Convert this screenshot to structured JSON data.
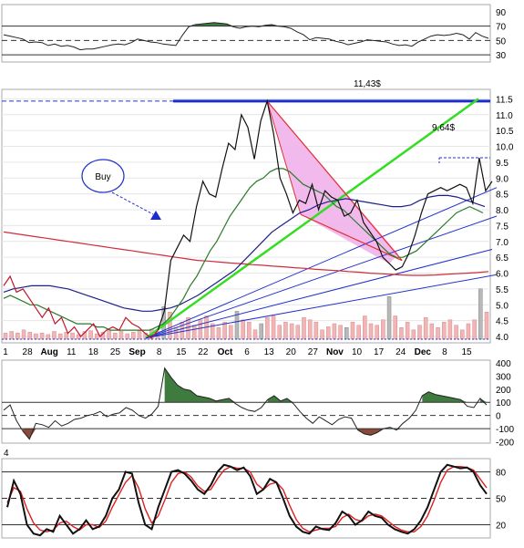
{
  "chart_data": {
    "type": "line",
    "panels": [
      {
        "id": "rsi",
        "ylim": [
          20,
          100
        ],
        "yticks": [
          "90",
          "70",
          "50",
          "30"
        ],
        "levels": [
          70,
          50,
          30
        ],
        "series": [
          {
            "values": [
              58,
              56,
              54,
              52,
              47,
              48,
              47,
              43,
              45,
              42,
              43,
              41,
              37,
              38,
              38,
              40,
              42,
              44,
              45,
              44,
              47,
              52,
              50,
              48,
              47,
              45,
              44,
              43,
              57,
              69,
              72,
              73,
              74,
              75,
              74,
              73,
              69,
              67,
              69,
              70,
              69,
              71,
              72,
              70,
              69,
              67,
              62,
              58,
              51,
              54,
              53,
              52,
              49,
              47,
              44,
              46,
              48,
              51,
              50,
              49,
              48,
              45,
              43,
              44,
              42,
              48,
              52,
              56,
              58,
              57,
              58,
              60,
              58,
              52,
              61,
              56,
              53
            ]
          }
        ]
      },
      {
        "id": "price",
        "ylim": [
          3.8,
          11.8
        ],
        "yticks": [
          "11.5",
          "11.0",
          "10.5",
          "10.0",
          "9.5",
          "9.0",
          "8.5",
          "8.0",
          "7.5",
          "7.0",
          "6.5",
          "6.0",
          "5.5",
          "5.0",
          "4.5",
          "4.0"
        ],
        "annotations": [
          "11,43$",
          "9,64$",
          "Buy"
        ],
        "series": [
          {
            "values": [
              5.6,
              5.9,
              5.4,
              5.5,
              5.2,
              4.9,
              4.6,
              4.9,
              4.4,
              4.6,
              4.1,
              4.3,
              4.0,
              4.2,
              4.4,
              4.0,
              4.2,
              4.3,
              4.2,
              4.6,
              4.4,
              4.3,
              4.1,
              3.95,
              4.2,
              4.8,
              6.4,
              6.8,
              7.2,
              7.0,
              8.1,
              8.9,
              8.5,
              8.4,
              9.3,
              10.1,
              9.9,
              11.0,
              10.6,
              9.6,
              10.8,
              11.43,
              10.4,
              9.0,
              8.5,
              7.9,
              8.3,
              8.2,
              8.8,
              8.0,
              8.6,
              8.4,
              8.3,
              7.8,
              7.9,
              8.3,
              7.6,
              7.3,
              7.0,
              6.5,
              6.3,
              6.1,
              6.2,
              6.6,
              7.2,
              7.9,
              8.5,
              8.6,
              8.7,
              8.6,
              8.7,
              8.8,
              8.7,
              8.2,
              9.64,
              8.6,
              8.9
            ]
          },
          {
            "values": [
              5.2,
              5.3,
              5.2,
              5.1,
              5.0,
              5.0,
              4.9,
              4.8,
              4.7,
              4.6,
              4.5,
              4.4,
              4.4,
              4.4,
              4.3,
              4.3,
              4.2,
              4.2,
              4.2,
              4.2,
              4.2,
              4.2,
              4.2,
              4.3,
              4.4,
              4.6,
              4.9,
              5.2,
              5.6,
              5.9,
              6.3,
              6.7,
              7.0,
              7.4,
              7.8,
              8.1,
              8.4,
              8.7,
              8.9,
              9.0,
              9.2,
              9.3,
              9.3,
              9.2,
              9.0,
              8.8,
              8.7,
              8.6,
              8.5,
              8.3,
              8.1,
              8.0,
              7.8,
              7.6,
              7.4,
              7.2,
              7.0,
              6.8,
              6.6,
              6.5,
              6.5,
              6.6,
              6.7,
              6.9,
              7.1,
              7.3,
              7.5,
              7.7,
              7.9,
              8.0,
              8.1,
              8.0,
              7.9
            ]
          },
          {
            "values": [
              5.4,
              5.5,
              5.55,
              5.6,
              5.6,
              5.6,
              5.55,
              5.5,
              5.4,
              5.3,
              5.2,
              5.1,
              5.0,
              4.9,
              4.85,
              4.8,
              4.8,
              4.85,
              4.9,
              5.0,
              5.15,
              5.3,
              5.5,
              5.7,
              5.9,
              6.1,
              6.4,
              6.7,
              7.0,
              7.3,
              7.5,
              7.7,
              7.9,
              8.0,
              8.15,
              8.25,
              8.3,
              8.35,
              8.3,
              8.25,
              8.2,
              8.15,
              8.1,
              8.1,
              8.15,
              8.3,
              8.4,
              8.45,
              8.45,
              8.4,
              8.3,
              8.2,
              8.1
            ]
          },
          {
            "values": [
              7.3,
              7.25,
              7.2,
              7.15,
              7.1,
              7.05,
              7.0,
              6.95,
              6.9,
              6.85,
              6.8,
              6.75,
              6.7,
              6.65,
              6.6,
              6.55,
              6.5,
              6.45,
              6.4,
              6.38,
              6.35,
              6.32,
              6.3,
              6.27,
              6.25,
              6.22,
              6.2,
              6.17,
              6.15,
              6.12,
              6.1,
              6.08,
              6.05,
              6.03,
              6.0,
              5.98,
              5.96,
              5.94,
              5.93,
              5.93,
              5.94,
              5.96,
              5.98,
              6.0,
              6.02,
              6.05
            ]
          }
        ],
        "volume": [
          0.08,
          0.1,
          0.08,
          0.12,
          0.09,
          0.07,
          0.08,
          0.06,
          0.1,
          0.07,
          0.09,
          0.08,
          0.06,
          0.1,
          0.11,
          0.07,
          0.09,
          0.12,
          0.08,
          0.1,
          0.07,
          0.09,
          0.11,
          0.08,
          0.13,
          0.1,
          0.42,
          0.35,
          0.15,
          0.22,
          0.28,
          0.18,
          0.25,
          0.3,
          0.2,
          0.15,
          0.22,
          0.18,
          0.36,
          0.25,
          0.22,
          0.12,
          0.2,
          0.28,
          0.3,
          0.18,
          0.22,
          0.2,
          0.18,
          0.28,
          0.25,
          0.22,
          0.12,
          0.16,
          0.2,
          0.18,
          0.15,
          0.22,
          0.18,
          0.3,
          0.2,
          0.18,
          0.25,
          0.55,
          0.3,
          0.15,
          0.22,
          0.12,
          0.18,
          0.28,
          0.2,
          0.15,
          0.22,
          0.25,
          0.18,
          0.12,
          0.2,
          0.25,
          0.65,
          0.35
        ]
      },
      {
        "id": "cci",
        "ylim": [
          -210,
          420
        ],
        "yticks": [
          "400",
          "300",
          "200",
          "100",
          "0",
          "-100",
          "-200"
        ],
        "levels": [
          100,
          -100
        ],
        "series": [
          {
            "values": [
              40,
              80,
              -40,
              -120,
              -180,
              -60,
              -70,
              -90,
              -40,
              -80,
              -60,
              -30,
              -20,
              0,
              10,
              30,
              -10,
              10,
              20,
              60,
              40,
              0,
              -20,
              10,
              70,
              360,
              290,
              230,
              200,
              190,
              150,
              140,
              130,
              110,
              120,
              130,
              90,
              60,
              40,
              30,
              60,
              120,
              150,
              110,
              130,
              90,
              30,
              -20,
              -60,
              -10,
              -40,
              -70,
              -30,
              -10,
              -20,
              -110,
              -140,
              -150,
              -130,
              -100,
              -90,
              -110,
              -60,
              -20,
              40,
              150,
              180,
              160,
              150,
              140,
              130,
              120,
              70,
              60,
              130,
              80
            ]
          }
        ]
      },
      {
        "id": "stoch",
        "ylim": [
          5,
          95
        ],
        "yticks": [
          "80",
          "50",
          "20"
        ],
        "label": "4",
        "levels": [
          80,
          50,
          20
        ],
        "series": [
          {
            "values": [
              40,
              70,
              55,
              20,
              10,
              8,
              15,
              12,
              30,
              20,
              10,
              15,
              25,
              15,
              18,
              30,
              50,
              60,
              80,
              78,
              45,
              20,
              15,
              40,
              60,
              80,
              82,
              78,
              70,
              60,
              55,
              65,
              80,
              88,
              86,
              82,
              85,
              75,
              55,
              60,
              72,
              68,
              50,
              30,
              18,
              12,
              10,
              18,
              15,
              14,
              22,
              35,
              30,
              20,
              25,
              35,
              30,
              28,
              20,
              15,
              12,
              10,
              15,
              25,
              40,
              60,
              80,
              88,
              86,
              84,
              85,
              80,
              65,
              55
            ]
          },
          {
            "values": [
              45,
              62,
              58,
              38,
              22,
              14,
              12,
              14,
              22,
              24,
              18,
              14,
              20,
              20,
              17,
              24,
              40,
              54,
              68,
              76,
              62,
              38,
              22,
              30,
              48,
              68,
              78,
              80,
              74,
              64,
              58,
              60,
              72,
              82,
              86,
              84,
              84,
              80,
              66,
              60,
              66,
              68,
              60,
              42,
              26,
              16,
              12,
              14,
              16,
              16,
              18,
              28,
              32,
              26,
              24,
              30,
              32,
              30,
              24,
              18,
              14,
              12,
              12,
              18,
              30,
              48,
              68,
              82,
              86,
              86,
              85,
              82,
              72,
              62
            ]
          }
        ]
      }
    ],
    "xticks": [
      {
        "label": "1",
        "bold": false
      },
      {
        "label": "28",
        "bold": false
      },
      {
        "label": "Aug",
        "bold": true
      },
      {
        "label": "11",
        "bold": false
      },
      {
        "label": "18",
        "bold": false
      },
      {
        "label": "25",
        "bold": false
      },
      {
        "label": "Sep",
        "bold": true
      },
      {
        "label": "8",
        "bold": false
      },
      {
        "label": "15",
        "bold": false
      },
      {
        "label": "22",
        "bold": false
      },
      {
        "label": "Oct",
        "bold": true
      },
      {
        "label": "6",
        "bold": false
      },
      {
        "label": "13",
        "bold": false
      },
      {
        "label": "20",
        "bold": false
      },
      {
        "label": "27",
        "bold": false
      },
      {
        "label": "Nov",
        "bold": true
      },
      {
        "label": "10",
        "bold": false
      },
      {
        "label": "17",
        "bold": false
      },
      {
        "label": "24",
        "bold": false
      },
      {
        "label": "Dec",
        "bold": true
      },
      {
        "label": "8",
        "bold": false
      },
      {
        "label": "15",
        "bold": false
      }
    ]
  }
}
